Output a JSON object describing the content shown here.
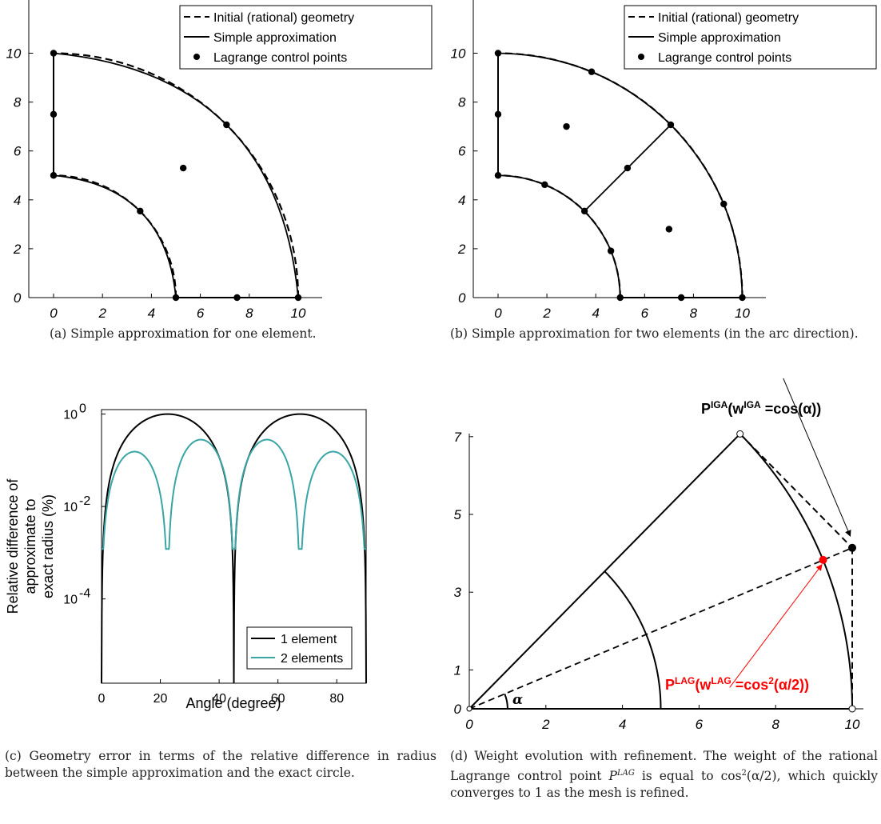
{
  "colors": {
    "black": "#000000",
    "teal": "#3aa5a5",
    "red": "#ff0000"
  },
  "chart_data": [
    {
      "panel": "a",
      "type": "line",
      "xlim": [
        -1,
        11
      ],
      "ylim": [
        0,
        12
      ],
      "xticks": [
        "0",
        "2",
        "4",
        "6",
        "8",
        "10"
      ],
      "yticks": [
        "0",
        "2",
        "4",
        "6",
        "8",
        "10"
      ],
      "grid": false,
      "legend_position": "top-right",
      "legend": [
        "Initial (rational) geometry",
        "Simple approximation",
        "Lagrange control points"
      ],
      "exact_radii": [
        5,
        10
      ],
      "approx_elements": 1,
      "control_points": [
        [
          0,
          10
        ],
        [
          7.07,
          7.07
        ],
        [
          10,
          0
        ],
        [
          5.3,
          5.3
        ],
        [
          0,
          7.5
        ],
        [
          7.5,
          0
        ],
        [
          0,
          5
        ],
        [
          3.54,
          3.54
        ],
        [
          5,
          0
        ]
      ],
      "caption": "(a) Simple approximation for one element."
    },
    {
      "panel": "b",
      "type": "line",
      "xlim": [
        -1,
        11
      ],
      "ylim": [
        0,
        12
      ],
      "xticks": [
        "0",
        "2",
        "4",
        "6",
        "8",
        "10"
      ],
      "yticks": [
        "0",
        "2",
        "4",
        "6",
        "8",
        "10"
      ],
      "grid": false,
      "legend_position": "top-right",
      "legend": [
        "Initial (rational) geometry",
        "Simple approximation",
        "Lagrange control points"
      ],
      "exact_radii": [
        5,
        10
      ],
      "approx_elements": 2,
      "control_points": [
        [
          0,
          10
        ],
        [
          3.83,
          9.24
        ],
        [
          7.07,
          7.07
        ],
        [
          9.24,
          3.83
        ],
        [
          10,
          0
        ],
        [
          2.8,
          7.0
        ],
        [
          5.3,
          5.3
        ],
        [
          7.0,
          2.8
        ],
        [
          0,
          7.5
        ],
        [
          7.5,
          0
        ],
        [
          0,
          5
        ],
        [
          1.91,
          4.62
        ],
        [
          3.54,
          3.54
        ],
        [
          4.62,
          1.91
        ],
        [
          5,
          0
        ]
      ],
      "caption": "(b) Simple approximation for two elements (in the arc direction)."
    },
    {
      "panel": "c",
      "type": "line",
      "yscale": "log",
      "xlim": [
        0,
        90
      ],
      "ylim": [
        1.5e-06,
        1.25
      ],
      "xticks": [
        "0",
        "20",
        "40",
        "60",
        "80"
      ],
      "xlabel": "Angle (degree)",
      "ylabel_lines": [
        "Relative difference of",
        "approximate to",
        "exact radius (%)"
      ],
      "ytick_labels": [
        {
          "base": "10",
          "exp": "0",
          "value": 1
        },
        {
          "base": "10",
          "exp": "-2",
          "value": 0.01
        },
        {
          "base": "10",
          "exp": "-4",
          "value": 0.0001
        }
      ],
      "legend_position": "bottom-right",
      "series": [
        {
          "name": "1 element",
          "color": "#000000",
          "peak": 1.0,
          "zeros_deg": [
            0,
            45,
            90
          ]
        },
        {
          "name": "2 elements",
          "color": "#3aa5a5",
          "peak": 0.28,
          "zeros_deg": [
            0,
            22.5,
            45,
            67.5,
            90
          ]
        }
      ],
      "caption": "(c) Geometry error in terms of the relative difference in radius between the simple approximation and the exact circle."
    },
    {
      "panel": "d",
      "type": "line",
      "xlim": [
        0,
        10
      ],
      "ylim": [
        0,
        8
      ],
      "xticks": [
        "0",
        "2",
        "4",
        "6",
        "8",
        "10"
      ],
      "yticks": [
        "0",
        "1",
        "3",
        "5",
        "7"
      ],
      "radius_outer": 10,
      "radius_inner": 5,
      "points": {
        "corner_top": [
          7.07,
          7.07
        ],
        "p_iga": [
          10.0,
          4.14
        ],
        "p_lag": [
          9.24,
          3.83
        ],
        "corner_right": [
          10,
          0
        ]
      },
      "annotations": {
        "p_iga_label": "P",
        "p_iga_sup1": "IGA",
        "p_iga_mid": "(w",
        "p_iga_sup2": "IGA",
        "p_iga_end": " =cos(α))",
        "p_lag_label": "P",
        "p_lag_sup1": "LAG",
        "p_lag_mid": "(w",
        "p_lag_sup2": "LAG",
        "p_lag_end1": " =cos",
        "p_lag_sup3": "2",
        "p_lag_end2": "(α/2))",
        "alpha": "α"
      },
      "caption_parts": {
        "line1": "(d) Weight evolution with refinement. The weight of",
        "line2a": "the rational Lagrange control point ",
        "line2_sym": "P",
        "line2_sup": "LAG",
        "line2b": " is equal to",
        "line3a": "cos",
        "line3_sup": "2",
        "line3b": "(α/2), which quickly converges to 1 as the mesh is",
        "line4": "refined."
      }
    }
  ]
}
